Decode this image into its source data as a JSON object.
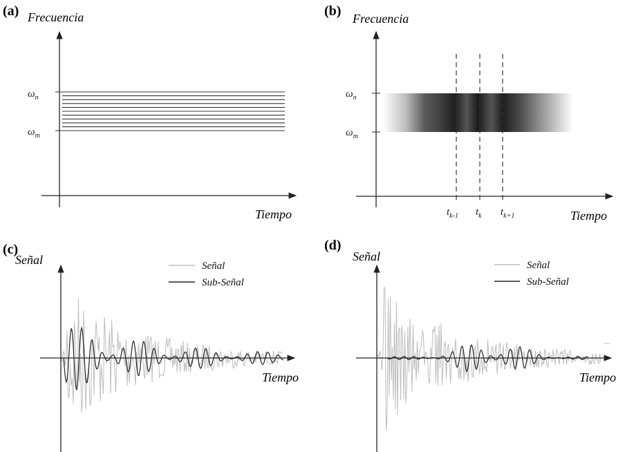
{
  "panels": {
    "a": {
      "label": "(a)",
      "ylabel": "Frecuencia",
      "xlabel": "Tiempo",
      "omega_n": {
        "base": "ω",
        "sub": "n"
      },
      "omega_m": {
        "base": "ω",
        "sub": "m"
      },
      "num_lines": 11
    },
    "b": {
      "label": "(b)",
      "ylabel": "Frecuencia",
      "xlabel": "Tiempo",
      "omega_n": {
        "base": "ω",
        "sub": "n"
      },
      "omega_m": {
        "base": "ω",
        "sub": "m"
      },
      "ticks": [
        {
          "base": "t",
          "sub": "k-1"
        },
        {
          "base": "t",
          "sub": "k"
        },
        {
          "base": "t",
          "sub": "k+1"
        }
      ]
    },
    "c": {
      "label": "(c)",
      "ylabel": "Señal",
      "xlabel": "Tiempo",
      "legend": [
        {
          "name": "Señal",
          "color": "#bdbdbd"
        },
        {
          "name": "Sub-Señal",
          "color": "#222222"
        }
      ]
    },
    "d": {
      "label": "(d)",
      "ylabel": "Señal",
      "xlabel": "Tiempo",
      "legend": [
        {
          "name": "Señal",
          "color": "#bdbdbd"
        },
        {
          "name": "Sub-Señal",
          "color": "#222222"
        }
      ]
    }
  }
}
